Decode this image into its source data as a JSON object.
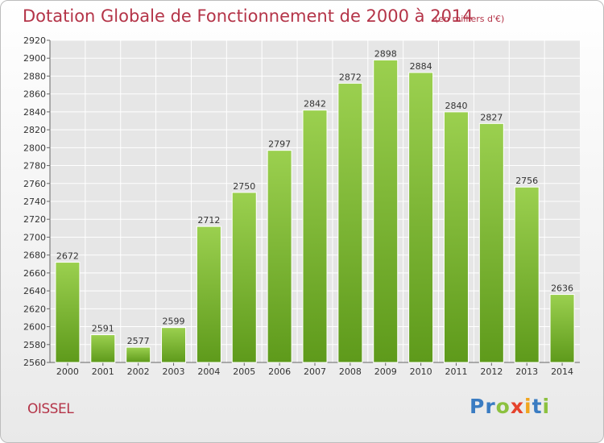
{
  "header": {
    "title": "Dotation Globale de Fonctionnement de 2000 à 2014",
    "unit": "(en milliers d'€)"
  },
  "footer": {
    "commune": "OISSEL",
    "logo_letters": [
      {
        "char": "P",
        "color": "#3a7cc2"
      },
      {
        "char": "r",
        "color": "#3a7cc2"
      },
      {
        "char": "o",
        "color": "#8cc13f"
      },
      {
        "char": "x",
        "color": "#e5432d"
      },
      {
        "char": "i",
        "color": "#f1a51f"
      },
      {
        "char": "t",
        "color": "#3a7cc2"
      },
      {
        "char": "i",
        "color": "#8cc13f"
      }
    ]
  },
  "colors": {
    "bar_top": "#9bd04f",
    "bar_bottom": "#5e9a1b",
    "title": "#b43448",
    "grid": "#ffffff",
    "plot_bg": "#e6e6e6"
  },
  "chart_data": {
    "type": "bar",
    "title": "Dotation Globale de Fonctionnement de 2000 à 2014",
    "subtitle": "(en milliers d'€)",
    "xlabel": "",
    "ylabel": "",
    "categories": [
      "2000",
      "2001",
      "2002",
      "2003",
      "2004",
      "2005",
      "2006",
      "2007",
      "2008",
      "2009",
      "2010",
      "2011",
      "2012",
      "2013",
      "2014"
    ],
    "values": [
      2672,
      2591,
      2577,
      2599,
      2712,
      2750,
      2797,
      2842,
      2872,
      2898,
      2884,
      2840,
      2827,
      2756,
      2636
    ],
    "ylim": [
      2560,
      2920
    ],
    "ytick_step": 20,
    "grid": true,
    "data_labels": true
  }
}
